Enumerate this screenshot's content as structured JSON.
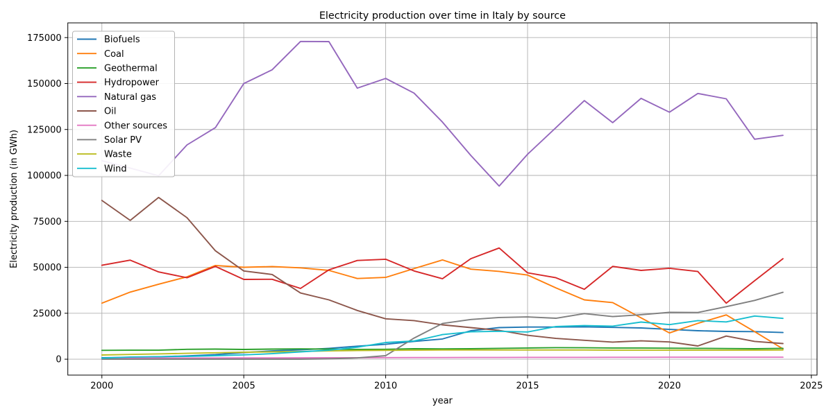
{
  "chart_data": {
    "type": "line",
    "title": "Electricity production over time in Italy by source",
    "xlabel": "year",
    "ylabel": "Electricity production (in GWh)",
    "grid": true,
    "legend_position": "upper left",
    "xlim": [
      1998.8,
      2025.2
    ],
    "ylim": [
      -8650,
      183000
    ],
    "xticks": [
      2000,
      2005,
      2010,
      2015,
      2020,
      2025
    ],
    "yticks": [
      0,
      25000,
      50000,
      75000,
      100000,
      125000,
      150000,
      175000
    ],
    "x": [
      2000,
      2001,
      2002,
      2003,
      2004,
      2005,
      2006,
      2007,
      2008,
      2009,
      2010,
      2011,
      2012,
      2013,
      2014,
      2015,
      2016,
      2017,
      2018,
      2019,
      2020,
      2021,
      2022,
      2023,
      2024
    ],
    "series": [
      {
        "name": "Biofuels",
        "color": "#1f77b4",
        "values": [
          800,
          1000,
          1300,
          1800,
          2500,
          3600,
          4500,
          5100,
          5900,
          7100,
          8100,
          9700,
          11000,
          15500,
          17200,
          17500,
          17500,
          17600,
          17300,
          17000,
          16200,
          15500,
          15100,
          15000,
          14500
        ]
      },
      {
        "name": "Coal",
        "color": "#ff7f0e",
        "values": [
          30500,
          36500,
          40800,
          44800,
          51000,
          50000,
          50400,
          49700,
          48300,
          43900,
          44500,
          49300,
          54000,
          49000,
          47800,
          45800,
          38800,
          32300,
          30800,
          22500,
          14300,
          19500,
          24100,
          15000,
          5600
        ]
      },
      {
        "name": "Geothermal",
        "color": "#2ca02c",
        "values": [
          4800,
          4900,
          4900,
          5400,
          5500,
          5300,
          5500,
          5600,
          5500,
          5300,
          5400,
          5700,
          5600,
          5700,
          5900,
          6100,
          6300,
          6200,
          6100,
          6100,
          6000,
          5900,
          5800,
          5700,
          5900
        ]
      },
      {
        "name": "Hydropower",
        "color": "#d62728",
        "values": [
          51100,
          53900,
          47500,
          44300,
          50500,
          43400,
          43500,
          38500,
          48600,
          53700,
          54400,
          48000,
          43800,
          54700,
          60500,
          47000,
          44300,
          38000,
          50500,
          48300,
          49500,
          47700,
          30500,
          42700,
          54700
        ]
      },
      {
        "name": "Natural gas",
        "color": "#9467bd",
        "values": [
          108000,
          104000,
          99800,
          116600,
          126000,
          150000,
          157500,
          172900,
          172800,
          147500,
          152800,
          144800,
          129000,
          110900,
          94200,
          111500,
          126000,
          140700,
          128700,
          141900,
          134400,
          144600,
          141700,
          119700,
          121800
        ]
      },
      {
        "name": "Oil",
        "color": "#8c564b",
        "values": [
          86400,
          75500,
          88000,
          77000,
          59000,
          48000,
          46100,
          36000,
          32300,
          26500,
          22000,
          21000,
          18700,
          17200,
          15700,
          13000,
          11300,
          10300,
          9300,
          10000,
          9400,
          7200,
          12600,
          9700,
          8500
        ]
      },
      {
        "name": "Other sources",
        "color": "#e377c2",
        "values": [
          500,
          550,
          600,
          600,
          650,
          700,
          700,
          750,
          800,
          800,
          850,
          900,
          900,
          950,
          950,
          1000,
          1000,
          1000,
          1050,
          1050,
          1100,
          1100,
          1100,
          1100,
          1100
        ]
      },
      {
        "name": "Solar PV",
        "color": "#7f7f7f",
        "values": [
          20,
          20,
          30,
          30,
          30,
          40,
          40,
          40,
          200,
          700,
          1900,
          11500,
          19400,
          21600,
          22700,
          23000,
          22300,
          24800,
          23200,
          24200,
          25500,
          25400,
          28600,
          32000,
          36400
        ]
      },
      {
        "name": "Waste",
        "color": "#bcbd22",
        "values": [
          2300,
          2600,
          2900,
          3200,
          3500,
          3800,
          4000,
          4200,
          4500,
          4700,
          4800,
          4900,
          5000,
          5000,
          5000,
          5000,
          5000,
          5000,
          4900,
          4900,
          4900,
          4900,
          4900,
          4900,
          5000
        ]
      },
      {
        "name": "Wind",
        "color": "#17becf",
        "values": [
          600,
          1200,
          1400,
          1500,
          1900,
          2350,
          3000,
          4000,
          4900,
          6500,
          9100,
          9900,
          13400,
          14900,
          15200,
          14800,
          17800,
          18300,
          18000,
          20200,
          18800,
          21000,
          20300,
          23500,
          22200
        ]
      }
    ]
  },
  "style": {
    "grid_color": "#b0b0b0",
    "spine_color": "#000000",
    "legend_border_color": "#b3b3b3",
    "legend_bg_color": "#ffffff"
  }
}
